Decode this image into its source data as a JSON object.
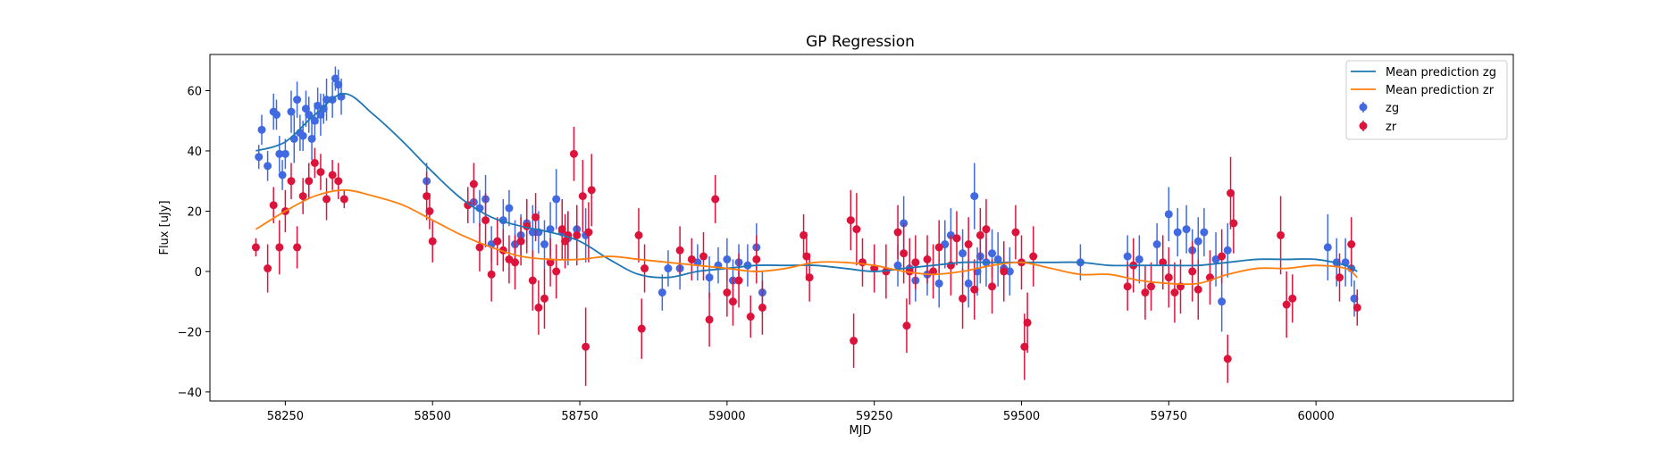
{
  "chart_data": {
    "type": "scatter",
    "title": "GP Regression",
    "xlabel": "MJD",
    "ylabel": "Flux [uJy]",
    "xlim": [
      58122,
      60335
    ],
    "ylim": [
      -43,
      72
    ],
    "xticks": [
      58250,
      58500,
      58750,
      59000,
      59250,
      59500,
      59750,
      60000
    ],
    "yticks": [
      -40,
      -20,
      0,
      20,
      40,
      60
    ],
    "grid": false,
    "legend_position": "top-right",
    "colors": {
      "mean_zg": "#1f77b4",
      "mean_zr": "#ff7f0e",
      "zg": "#4169e1",
      "zr": "#dc143c"
    },
    "series": [
      {
        "name": "Mean prediction zg",
        "kind": "line",
        "x": [
          58200,
          58250,
          58300,
          58350,
          58400,
          58450,
          58500,
          58550,
          58600,
          58650,
          58700,
          58750,
          58800,
          58850,
          58900,
          58950,
          59000,
          59050,
          59100,
          59150,
          59200,
          59250,
          59300,
          59350,
          59400,
          59450,
          59500,
          59550,
          59600,
          59650,
          59700,
          59750,
          59800,
          59850,
          59900,
          59950,
          60000,
          60050,
          60070
        ],
        "y": [
          40,
          43,
          52,
          59,
          52,
          43,
          33,
          24,
          18,
          15,
          13,
          10,
          4,
          -1,
          -2,
          0,
          1,
          2,
          2,
          2,
          1,
          0,
          1,
          2,
          3,
          3,
          3,
          3,
          3,
          2,
          2,
          2,
          2,
          3,
          4,
          4,
          4,
          2,
          0
        ]
      },
      {
        "name": "Mean prediction zr",
        "kind": "line",
        "x": [
          58200,
          58250,
          58300,
          58350,
          58400,
          58450,
          58500,
          58550,
          58600,
          58650,
          58700,
          58750,
          58800,
          58850,
          58900,
          58950,
          59000,
          59050,
          59100,
          59150,
          59200,
          59250,
          59300,
          59350,
          59400,
          59450,
          59500,
          59550,
          59600,
          59650,
          59700,
          59750,
          59800,
          59850,
          59900,
          59950,
          60000,
          60050,
          60070
        ],
        "y": [
          14,
          20,
          25,
          27,
          25,
          22,
          17,
          12,
          8,
          5,
          4,
          4,
          5,
          4,
          3,
          2,
          1,
          0,
          1,
          3,
          3,
          2,
          0,
          -1,
          0,
          2,
          3,
          1,
          -1,
          -1,
          -3,
          -4,
          -4,
          -1,
          1,
          1,
          2,
          1,
          -2
        ]
      },
      {
        "name": "zg",
        "kind": "errorbar",
        "x": [
          58205,
          58210,
          58220,
          58230,
          58235,
          58240,
          58245,
          58250,
          58260,
          58265,
          58270,
          58275,
          58280,
          58285,
          58290,
          58295,
          58300,
          58305,
          58310,
          58315,
          58320,
          58330,
          58335,
          58340,
          58345,
          58490,
          58570,
          58580,
          58590,
          58600,
          58610,
          58620,
          58630,
          58640,
          58650,
          58660,
          58670,
          58680,
          58690,
          58700,
          58710,
          58720,
          58730,
          58745,
          58760,
          58890,
          58900,
          58920,
          58950,
          58970,
          58985,
          59000,
          59010,
          59020,
          59035,
          59050,
          59060,
          59290,
          59300,
          59310,
          59320,
          59340,
          59360,
          59370,
          59380,
          59400,
          59410,
          59420,
          59425,
          59430,
          59440,
          59450,
          59460,
          59470,
          59480,
          59600,
          59680,
          59700,
          59730,
          59750,
          59765,
          59780,
          59790,
          59800,
          59810,
          59830,
          59840,
          59850,
          60020,
          60035,
          60050,
          60060,
          60065
        ],
        "y": [
          38,
          47,
          35,
          53,
          52,
          39,
          32,
          39,
          53,
          44,
          57,
          46,
          45,
          54,
          52,
          44,
          50,
          55,
          52,
          54,
          57,
          57,
          64,
          62,
          58,
          30,
          23,
          21,
          24,
          9,
          10,
          17,
          21,
          9,
          12,
          16,
          13,
          13,
          9,
          14,
          24,
          13,
          11,
          14,
          12,
          -7,
          1,
          1,
          3,
          -2,
          2,
          4,
          -3,
          3,
          2,
          8,
          -7,
          2,
          16,
          1,
          -3,
          -1,
          -4,
          9,
          12,
          6,
          -4,
          25,
          0,
          5,
          3,
          6,
          4,
          1,
          0,
          3,
          5,
          4,
          9,
          19,
          13,
          14,
          7,
          10,
          13,
          4,
          -10,
          7,
          8,
          3,
          3,
          1,
          -9
        ],
        "yerr": [
          4,
          5,
          5,
          6,
          5,
          6,
          5,
          5,
          7,
          8,
          6,
          6,
          5,
          6,
          6,
          7,
          6,
          6,
          7,
          5,
          7,
          6,
          4,
          5,
          6,
          6,
          7,
          6,
          8,
          6,
          7,
          7,
          6,
          8,
          7,
          8,
          9,
          7,
          8,
          9,
          10,
          8,
          9,
          8,
          9,
          6,
          6,
          7,
          6,
          7,
          6,
          7,
          7,
          6,
          7,
          8,
          7,
          7,
          9,
          8,
          7,
          7,
          8,
          8,
          9,
          8,
          8,
          11,
          8,
          9,
          8,
          8,
          9,
          8,
          8,
          6,
          7,
          8,
          7,
          9,
          8,
          8,
          7,
          8,
          8,
          9,
          10,
          9,
          11,
          8,
          8,
          6,
          6
        ]
      },
      {
        "name": "zr",
        "kind": "errorbar",
        "x": [
          58200,
          58220,
          58230,
          58240,
          58250,
          58260,
          58270,
          58280,
          58290,
          58300,
          58310,
          58320,
          58330,
          58340,
          58350,
          58490,
          58495,
          58500,
          58560,
          58570,
          58580,
          58590,
          58600,
          58610,
          58620,
          58630,
          58640,
          58650,
          58660,
          58670,
          58675,
          58680,
          58690,
          58700,
          58710,
          58720,
          58725,
          58730,
          58740,
          58745,
          58755,
          58760,
          58765,
          58770,
          58850,
          58855,
          58860,
          58920,
          58940,
          58960,
          58970,
          58980,
          59000,
          59010,
          59020,
          59040,
          59050,
          59060,
          59130,
          59135,
          59140,
          59210,
          59215,
          59220,
          59230,
          59250,
          59270,
          59290,
          59300,
          59305,
          59310,
          59320,
          59340,
          59350,
          59360,
          59380,
          59390,
          59400,
          59410,
          59420,
          59430,
          59440,
          59450,
          59470,
          59490,
          59500,
          59505,
          59510,
          59520,
          59680,
          59690,
          59710,
          59720,
          59740,
          59750,
          59760,
          59770,
          59790,
          59800,
          59820,
          59840,
          59850,
          59855,
          59860,
          59940,
          59950,
          59960,
          60040,
          60060,
          60070
        ],
        "y": [
          8,
          1,
          22,
          8,
          20,
          30,
          8,
          25,
          30,
          36,
          33,
          24,
          32,
          30,
          24,
          25,
          20,
          10,
          22,
          29,
          8,
          17,
          -1,
          10,
          7,
          4,
          3,
          10,
          15,
          -3,
          18,
          -12,
          -9,
          3,
          0,
          14,
          10,
          12,
          39,
          12,
          25,
          -25,
          13,
          27,
          12,
          -19,
          1,
          7,
          4,
          5,
          -16,
          24,
          -7,
          -10,
          -3,
          -15,
          4,
          -12,
          12,
          5,
          -2,
          17,
          -23,
          14,
          3,
          1,
          0,
          13,
          6,
          -18,
          0,
          3,
          4,
          0,
          8,
          2,
          11,
          -9,
          9,
          -6,
          12,
          14,
          -5,
          0,
          13,
          3,
          -25,
          -17,
          5,
          -5,
          2,
          -7,
          -5,
          3,
          -2,
          -7,
          -5,
          0,
          -6,
          -2,
          5,
          -29,
          26,
          16,
          12,
          -11,
          -9,
          -2,
          9,
          -12
        ],
        "yerr": [
          3,
          8,
          6,
          9,
          7,
          6,
          7,
          6,
          6,
          5,
          6,
          7,
          5,
          6,
          3,
          8,
          6,
          7,
          6,
          7,
          8,
          9,
          9,
          8,
          7,
          8,
          9,
          8,
          9,
          10,
          8,
          9,
          10,
          8,
          9,
          10,
          9,
          8,
          9,
          10,
          12,
          13,
          10,
          12,
          9,
          10,
          8,
          8,
          7,
          8,
          9,
          8,
          8,
          8,
          9,
          7,
          8,
          9,
          7,
          8,
          8,
          10,
          9,
          12,
          8,
          8,
          9,
          9,
          10,
          9,
          11,
          9,
          8,
          9,
          9,
          10,
          9,
          10,
          9,
          10,
          9,
          10,
          9,
          10,
          9,
          9,
          11,
          10,
          10,
          8,
          9,
          9,
          8,
          9,
          10,
          10,
          9,
          10,
          10,
          9,
          9,
          8,
          12,
          10,
          13,
          11,
          8,
          8,
          9,
          6
        ]
      }
    ]
  }
}
